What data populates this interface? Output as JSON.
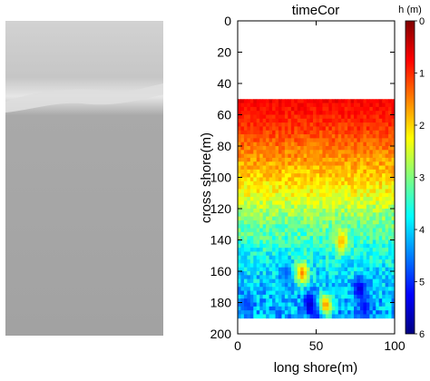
{
  "photo_panel": {
    "description_icon": "grayscale-camera-image"
  },
  "chart_data": {
    "type": "heatmap",
    "title": "timeCor",
    "xlabel": "long shore(m)",
    "ylabel": "cross shore(m)",
    "xlim": [
      0,
      100
    ],
    "ylim": [
      200,
      0
    ],
    "y_reversed": true,
    "x_ticks": [
      "0",
      "50",
      "100"
    ],
    "y_ticks": [
      "0",
      "20",
      "40",
      "60",
      "80",
      "100",
      "120",
      "140",
      "160",
      "180",
      "200"
    ],
    "data_extent": {
      "x": [
        0,
        100
      ],
      "y": [
        50,
        190
      ]
    },
    "grid": false,
    "colorbar": {
      "label": "h (m)",
      "min": 0,
      "max": 6,
      "reversed": true,
      "ticks": [
        "0",
        "1",
        "2",
        "3",
        "4",
        "5",
        "6"
      ],
      "colormap": "jet"
    },
    "depth_profile": [
      {
        "cross_shore": 50,
        "h": 0.7
      },
      {
        "cross_shore": 60,
        "h": 0.9
      },
      {
        "cross_shore": 70,
        "h": 1.1
      },
      {
        "cross_shore": 80,
        "h": 1.4
      },
      {
        "cross_shore": 90,
        "h": 1.7
      },
      {
        "cross_shore": 100,
        "h": 2.0
      },
      {
        "cross_shore": 110,
        "h": 2.3
      },
      {
        "cross_shore": 120,
        "h": 2.7
      },
      {
        "cross_shore": 130,
        "h": 3.1
      },
      {
        "cross_shore": 140,
        "h": 3.4
      },
      {
        "cross_shore": 150,
        "h": 3.7
      },
      {
        "cross_shore": 160,
        "h": 3.9
      },
      {
        "cross_shore": 170,
        "h": 4.1
      },
      {
        "cross_shore": 180,
        "h": 4.2
      },
      {
        "cross_shore": 190,
        "h": 4.2
      }
    ],
    "deep_patches": [
      {
        "x": 45,
        "y": 180,
        "h": 5.6
      },
      {
        "x": 50,
        "y": 187,
        "h": 5.3
      },
      {
        "x": 77,
        "y": 170,
        "h": 5.5
      },
      {
        "x": 80,
        "y": 182,
        "h": 5.2
      },
      {
        "x": 5,
        "y": 180,
        "h": 4.9
      },
      {
        "x": 30,
        "y": 160,
        "h": 4.7
      }
    ],
    "shallow_patches": [
      {
        "x": 40,
        "y": 160,
        "h": 1.5
      },
      {
        "x": 65,
        "y": 140,
        "h": 1.8
      },
      {
        "x": 55,
        "y": 180,
        "h": 1.6
      }
    ]
  }
}
